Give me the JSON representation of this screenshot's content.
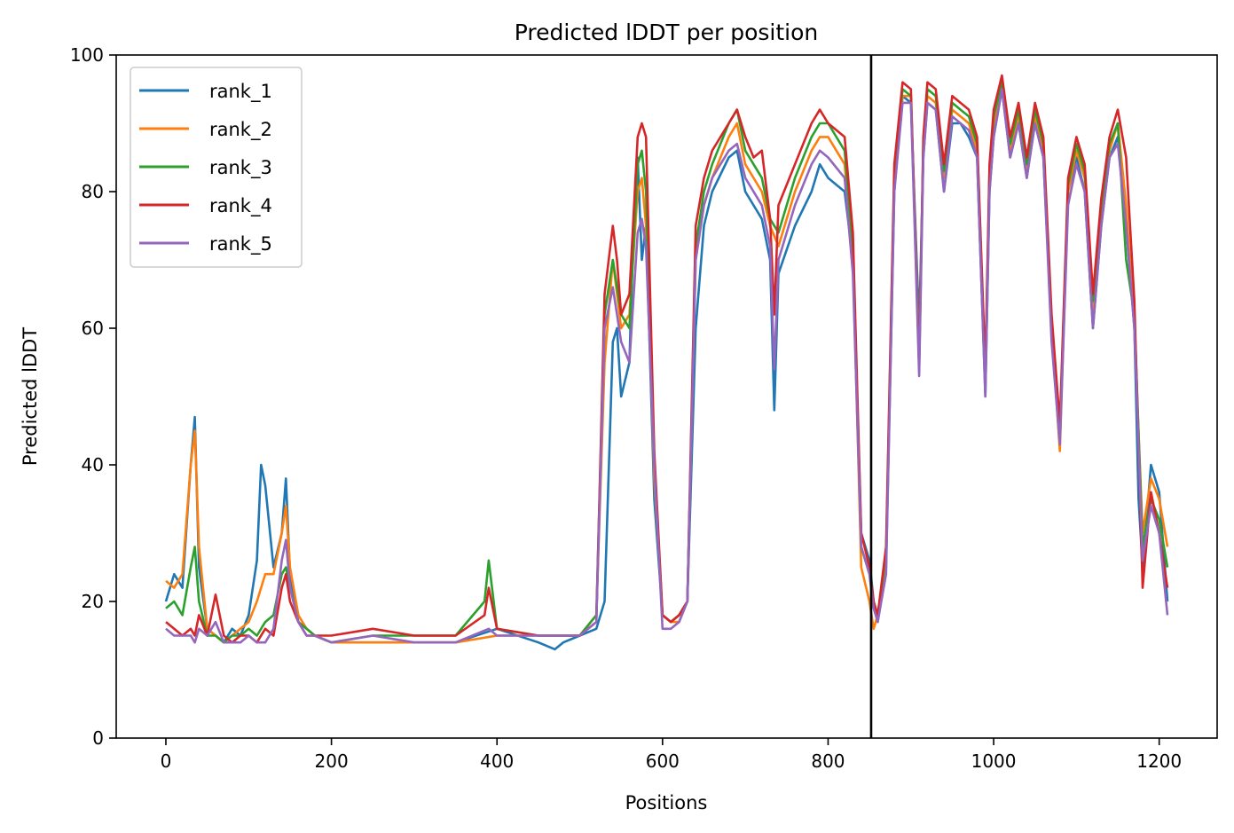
{
  "chart_data": {
    "type": "line",
    "title": "Predicted lDDT per position",
    "xlabel": "Positions",
    "ylabel": "Predicted lDDT",
    "xlim": [
      -60,
      1270
    ],
    "ylim": [
      0,
      100
    ],
    "xticks": [
      0,
      200,
      400,
      600,
      800,
      1000,
      1200
    ],
    "yticks": [
      0,
      20,
      40,
      60,
      80,
      100
    ],
    "grid": false,
    "legend_position": "top-left",
    "vline_x": 852,
    "vline_color": "#000000",
    "series": [
      {
        "name": "rank_1",
        "color": "#1f77b4",
        "x": [
          0,
          10,
          20,
          30,
          35,
          40,
          50,
          60,
          70,
          80,
          90,
          100,
          110,
          115,
          120,
          130,
          140,
          145,
          150,
          160,
          170,
          180,
          200,
          250,
          300,
          350,
          400,
          450,
          470,
          480,
          500,
          520,
          530,
          540,
          545,
          550,
          560,
          565,
          570,
          575,
          580,
          590,
          600,
          610,
          620,
          630,
          640,
          650,
          660,
          680,
          690,
          700,
          720,
          730,
          735,
          740,
          760,
          780,
          790,
          800,
          820,
          830,
          840,
          850,
          855,
          860,
          870,
          880,
          890,
          900,
          910,
          915,
          920,
          930,
          940,
          950,
          960,
          970,
          980,
          990,
          995,
          1000,
          1010,
          1020,
          1030,
          1040,
          1050,
          1060,
          1070,
          1080,
          1090,
          1100,
          1110,
          1120,
          1130,
          1140,
          1150,
          1160,
          1170,
          1175,
          1180,
          1190,
          1200,
          1210
        ],
        "y": [
          20,
          24,
          22,
          40,
          47,
          25,
          16,
          15,
          14,
          16,
          15,
          18,
          26,
          40,
          37,
          25,
          30,
          38,
          24,
          17,
          16,
          15,
          14,
          14,
          14,
          14,
          16,
          14,
          13,
          14,
          15,
          16,
          20,
          58,
          60,
          50,
          55,
          75,
          85,
          70,
          75,
          35,
          18,
          17,
          18,
          20,
          60,
          75,
          80,
          85,
          86,
          80,
          76,
          70,
          48,
          68,
          75,
          80,
          84,
          82,
          80,
          70,
          30,
          26,
          20,
          17,
          25,
          80,
          94,
          93,
          60,
          85,
          93,
          92,
          80,
          90,
          90,
          88,
          85,
          50,
          80,
          88,
          95,
          85,
          90,
          82,
          90,
          85,
          60,
          44,
          80,
          85,
          80,
          60,
          75,
          85,
          88,
          75,
          60,
          35,
          25,
          40,
          36,
          20
        ]
      },
      {
        "name": "rank_2",
        "color": "#ff7f0e",
        "x": [
          0,
          10,
          20,
          30,
          35,
          40,
          50,
          60,
          70,
          80,
          90,
          100,
          110,
          120,
          130,
          140,
          145,
          150,
          160,
          170,
          180,
          200,
          250,
          300,
          350,
          400,
          450,
          500,
          520,
          530,
          540,
          550,
          560,
          570,
          575,
          580,
          590,
          600,
          610,
          620,
          630,
          640,
          650,
          660,
          680,
          690,
          700,
          720,
          730,
          740,
          760,
          780,
          790,
          800,
          820,
          830,
          840,
          850,
          855,
          860,
          870,
          880,
          890,
          900,
          910,
          915,
          920,
          930,
          940,
          950,
          960,
          970,
          980,
          990,
          995,
          1000,
          1010,
          1020,
          1030,
          1040,
          1050,
          1060,
          1070,
          1080,
          1090,
          1100,
          1110,
          1120,
          1130,
          1140,
          1150,
          1160,
          1170,
          1180,
          1190,
          1200,
          1210
        ],
        "y": [
          23,
          22,
          24,
          40,
          45,
          28,
          16,
          15,
          14,
          15,
          16,
          17,
          20,
          24,
          24,
          30,
          34,
          25,
          18,
          16,
          15,
          14,
          14,
          14,
          14,
          15,
          15,
          15,
          18,
          55,
          70,
          60,
          62,
          80,
          82,
          75,
          38,
          18,
          17,
          17,
          20,
          70,
          78,
          82,
          88,
          90,
          84,
          80,
          75,
          72,
          80,
          86,
          88,
          88,
          84,
          70,
          25,
          20,
          16,
          18,
          26,
          82,
          94,
          94,
          56,
          86,
          94,
          93,
          82,
          92,
          91,
          90,
          86,
          52,
          82,
          90,
          95,
          86,
          91,
          83,
          91,
          86,
          60,
          42,
          80,
          86,
          82,
          62,
          76,
          86,
          90,
          78,
          60,
          30,
          38,
          35,
          28
        ]
      },
      {
        "name": "rank_3",
        "color": "#2ca02c",
        "x": [
          0,
          10,
          20,
          30,
          35,
          40,
          50,
          60,
          70,
          80,
          90,
          100,
          110,
          120,
          130,
          140,
          145,
          150,
          160,
          170,
          180,
          200,
          250,
          300,
          350,
          385,
          390,
          400,
          450,
          500,
          520,
          530,
          540,
          550,
          560,
          570,
          575,
          580,
          590,
          600,
          610,
          620,
          630,
          640,
          650,
          660,
          680,
          690,
          700,
          720,
          730,
          740,
          760,
          780,
          790,
          800,
          820,
          830,
          840,
          850,
          855,
          860,
          870,
          880,
          890,
          900,
          910,
          915,
          920,
          930,
          940,
          950,
          960,
          970,
          980,
          990,
          995,
          1000,
          1010,
          1020,
          1030,
          1040,
          1050,
          1060,
          1070,
          1080,
          1090,
          1100,
          1110,
          1120,
          1130,
          1140,
          1150,
          1160,
          1170,
          1180,
          1190,
          1200,
          1210
        ],
        "y": [
          19,
          20,
          18,
          25,
          28,
          20,
          15,
          15,
          14,
          15,
          15,
          16,
          15,
          17,
          18,
          24,
          25,
          22,
          17,
          16,
          15,
          14,
          15,
          15,
          15,
          20,
          26,
          16,
          15,
          15,
          18,
          62,
          70,
          62,
          60,
          84,
          86,
          80,
          40,
          18,
          17,
          18,
          20,
          72,
          80,
          84,
          90,
          92,
          86,
          82,
          76,
          74,
          82,
          88,
          90,
          90,
          86,
          72,
          28,
          24,
          19,
          18,
          27,
          82,
          95,
          94,
          55,
          87,
          95,
          94,
          83,
          93,
          92,
          91,
          87,
          53,
          83,
          91,
          96,
          87,
          92,
          84,
          92,
          87,
          61,
          45,
          81,
          87,
          83,
          64,
          78,
          87,
          90,
          70,
          62,
          28,
          35,
          32,
          25
        ]
      },
      {
        "name": "rank_4",
        "color": "#d62728",
        "x": [
          0,
          10,
          20,
          30,
          35,
          40,
          50,
          60,
          70,
          80,
          90,
          100,
          110,
          120,
          130,
          140,
          145,
          150,
          160,
          170,
          180,
          200,
          250,
          300,
          350,
          385,
          390,
          400,
          450,
          500,
          520,
          530,
          540,
          545,
          550,
          560,
          570,
          575,
          580,
          590,
          600,
          610,
          620,
          630,
          640,
          650,
          660,
          680,
          690,
          700,
          710,
          720,
          730,
          735,
          740,
          760,
          780,
          790,
          800,
          820,
          830,
          840,
          850,
          855,
          860,
          870,
          880,
          890,
          900,
          910,
          915,
          920,
          930,
          940,
          950,
          960,
          970,
          980,
          990,
          995,
          1000,
          1010,
          1020,
          1030,
          1040,
          1050,
          1060,
          1070,
          1080,
          1090,
          1100,
          1110,
          1120,
          1130,
          1140,
          1150,
          1160,
          1170,
          1180,
          1190,
          1200,
          1210
        ],
        "y": [
          17,
          16,
          15,
          16,
          15,
          18,
          15,
          21,
          15,
          14,
          15,
          15,
          14,
          16,
          15,
          22,
          24,
          20,
          17,
          15,
          15,
          15,
          16,
          15,
          15,
          18,
          22,
          16,
          15,
          15,
          17,
          65,
          75,
          70,
          62,
          65,
          88,
          90,
          88,
          42,
          18,
          17,
          18,
          20,
          75,
          82,
          86,
          90,
          92,
          88,
          85,
          86,
          76,
          62,
          78,
          84,
          90,
          92,
          90,
          88,
          74,
          30,
          25,
          20,
          18,
          28,
          84,
          96,
          95,
          54,
          88,
          96,
          95,
          84,
          94,
          93,
          92,
          88,
          54,
          84,
          92,
          97,
          88,
          93,
          85,
          93,
          88,
          62,
          46,
          82,
          88,
          84,
          65,
          79,
          88,
          92,
          85,
          64,
          22,
          36,
          30,
          22
        ]
      },
      {
        "name": "rank_5",
        "color": "#9467bd",
        "x": [
          0,
          10,
          20,
          30,
          35,
          40,
          50,
          60,
          70,
          80,
          90,
          100,
          110,
          120,
          130,
          140,
          145,
          150,
          160,
          170,
          180,
          200,
          250,
          300,
          350,
          390,
          400,
          450,
          500,
          520,
          530,
          540,
          550,
          560,
          570,
          575,
          580,
          590,
          600,
          610,
          620,
          630,
          640,
          650,
          660,
          680,
          690,
          700,
          720,
          730,
          735,
          740,
          760,
          780,
          790,
          800,
          820,
          830,
          840,
          850,
          855,
          860,
          870,
          880,
          890,
          900,
          910,
          915,
          920,
          930,
          940,
          950,
          960,
          970,
          980,
          990,
          995,
          1000,
          1010,
          1020,
          1030,
          1040,
          1050,
          1060,
          1070,
          1080,
          1090,
          1100,
          1110,
          1120,
          1130,
          1140,
          1150,
          1160,
          1170,
          1180,
          1190,
          1200,
          1210
        ],
        "y": [
          16,
          15,
          15,
          15,
          14,
          16,
          15,
          17,
          14,
          14,
          14,
          15,
          14,
          14,
          16,
          26,
          29,
          22,
          17,
          15,
          15,
          14,
          15,
          14,
          14,
          16,
          15,
          15,
          15,
          17,
          60,
          66,
          58,
          55,
          74,
          76,
          72,
          40,
          16,
          16,
          17,
          20,
          70,
          78,
          82,
          86,
          87,
          82,
          78,
          72,
          54,
          70,
          78,
          84,
          86,
          85,
          82,
          68,
          28,
          24,
          19,
          17,
          24,
          80,
          93,
          93,
          53,
          85,
          93,
          92,
          80,
          91,
          90,
          89,
          85,
          50,
          80,
          88,
          95,
          85,
          90,
          82,
          90,
          85,
          58,
          43,
          78,
          84,
          80,
          60,
          75,
          85,
          87,
          75,
          60,
          26,
          34,
          30,
          18
        ]
      }
    ]
  }
}
